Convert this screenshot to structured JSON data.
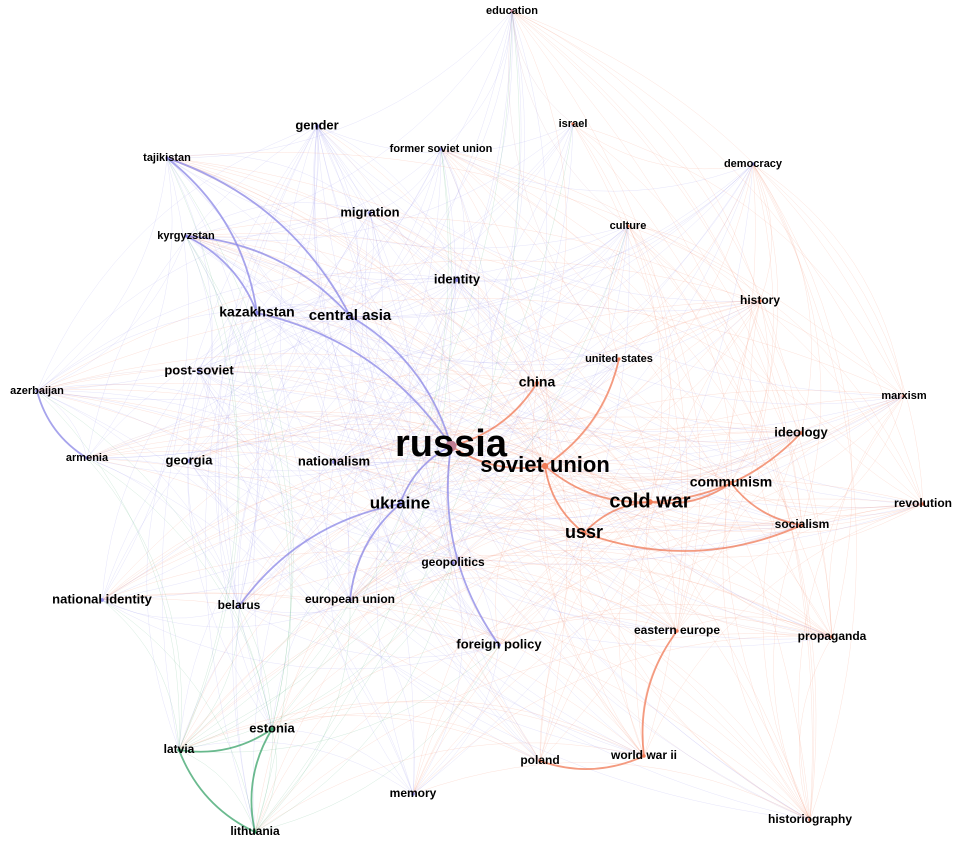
{
  "graph": {
    "communities": {
      "blue": "#8a86e6",
      "red": "#f07a55",
      "green": "#3aa36a",
      "mauve": "#c07e93"
    },
    "nodes": [
      {
        "id": "russia",
        "label": "russia",
        "c": "mauve"
      },
      {
        "id": "soviet union",
        "label": "soviet union",
        "c": "red"
      },
      {
        "id": "cold war",
        "label": "cold war",
        "c": "red"
      },
      {
        "id": "ukraine",
        "label": "ukraine",
        "c": "blue"
      },
      {
        "id": "ussr",
        "label": "ussr",
        "c": "red"
      },
      {
        "id": "central asia",
        "label": "central asia",
        "c": "blue"
      },
      {
        "id": "kazakhstan",
        "label": "kazakhstan",
        "c": "blue"
      },
      {
        "id": "communism",
        "label": "communism",
        "c": "red"
      },
      {
        "id": "china",
        "label": "china",
        "c": "red"
      },
      {
        "id": "georgia",
        "label": "georgia",
        "c": "blue"
      },
      {
        "id": "nationalism",
        "label": "nationalism",
        "c": "blue"
      },
      {
        "id": "identity",
        "label": "identity",
        "c": "blue"
      },
      {
        "id": "migration",
        "label": "migration",
        "c": "blue"
      },
      {
        "id": "post-soviet",
        "label": "post-soviet",
        "c": "blue"
      },
      {
        "id": "gender",
        "label": "gender",
        "c": "blue"
      },
      {
        "id": "ideology",
        "label": "ideology",
        "c": "red"
      },
      {
        "id": "socialism",
        "label": "socialism",
        "c": "red"
      },
      {
        "id": "history",
        "label": "history",
        "c": "red"
      },
      {
        "id": "marxism",
        "label": "marxism",
        "c": "red"
      },
      {
        "id": "revolution",
        "label": "revolution",
        "c": "red"
      },
      {
        "id": "propaganda",
        "label": "propaganda",
        "c": "red"
      },
      {
        "id": "eastern europe",
        "label": "eastern europe",
        "c": "red"
      },
      {
        "id": "world war ii",
        "label": "world war ii",
        "c": "red"
      },
      {
        "id": "poland",
        "label": "poland",
        "c": "red"
      },
      {
        "id": "historiography",
        "label": "historiography",
        "c": "red"
      },
      {
        "id": "memory",
        "label": "memory",
        "c": "blue"
      },
      {
        "id": "lithuania",
        "label": "lithuania",
        "c": "green"
      },
      {
        "id": "latvia",
        "label": "latvia",
        "c": "green"
      },
      {
        "id": "estonia",
        "label": "estonia",
        "c": "green"
      },
      {
        "id": "national identity",
        "label": "national identity",
        "c": "blue"
      },
      {
        "id": "belarus",
        "label": "belarus",
        "c": "blue"
      },
      {
        "id": "european union",
        "label": "european union",
        "c": "blue"
      },
      {
        "id": "foreign policy",
        "label": "foreign policy",
        "c": "blue"
      },
      {
        "id": "geopolitics",
        "label": "geopolitics",
        "c": "blue"
      },
      {
        "id": "armenia",
        "label": "armenia",
        "c": "blue"
      },
      {
        "id": "azerbaijan",
        "label": "azerbaijan",
        "c": "blue"
      },
      {
        "id": "kyrgyzstan",
        "label": "kyrgyzstan",
        "c": "blue"
      },
      {
        "id": "tajikistan",
        "label": "tajikistan",
        "c": "blue"
      },
      {
        "id": "former soviet union",
        "label": "former soviet union",
        "c": "blue"
      },
      {
        "id": "education",
        "label": "education",
        "c": "mauve"
      },
      {
        "id": "israel",
        "label": "israel",
        "c": "red"
      },
      {
        "id": "democracy",
        "label": "democracy",
        "c": "blue"
      },
      {
        "id": "culture",
        "label": "culture",
        "c": "red"
      },
      {
        "id": "united states",
        "label": "united states",
        "c": "red"
      }
    ],
    "strong_edges": [
      [
        "russia",
        "ukraine"
      ],
      [
        "russia",
        "soviet union"
      ],
      [
        "russia",
        "central asia"
      ],
      [
        "russia",
        "kazakhstan"
      ],
      [
        "russia",
        "china"
      ],
      [
        "russia",
        "foreign policy"
      ],
      [
        "soviet union",
        "cold war"
      ],
      [
        "soviet union",
        "ussr"
      ],
      [
        "soviet union",
        "united states"
      ],
      [
        "cold war",
        "communism"
      ],
      [
        "cold war",
        "ussr"
      ],
      [
        "cold war",
        "ideology"
      ],
      [
        "ussr",
        "socialism"
      ],
      [
        "kazakhstan",
        "kyrgyzstan"
      ],
      [
        "kazakhstan",
        "tajikistan"
      ],
      [
        "central asia",
        "kyrgyzstan"
      ],
      [
        "central asia",
        "tajikistan"
      ],
      [
        "ukraine",
        "belarus"
      ],
      [
        "ukraine",
        "european union"
      ],
      [
        "latvia",
        "lithuania"
      ],
      [
        "latvia",
        "estonia"
      ],
      [
        "estonia",
        "lithuania"
      ],
      [
        "eastern europe",
        "world war ii"
      ],
      [
        "poland",
        "world war ii"
      ],
      [
        "communism",
        "socialism"
      ],
      [
        "azerbaijan",
        "armenia"
      ]
    ]
  }
}
